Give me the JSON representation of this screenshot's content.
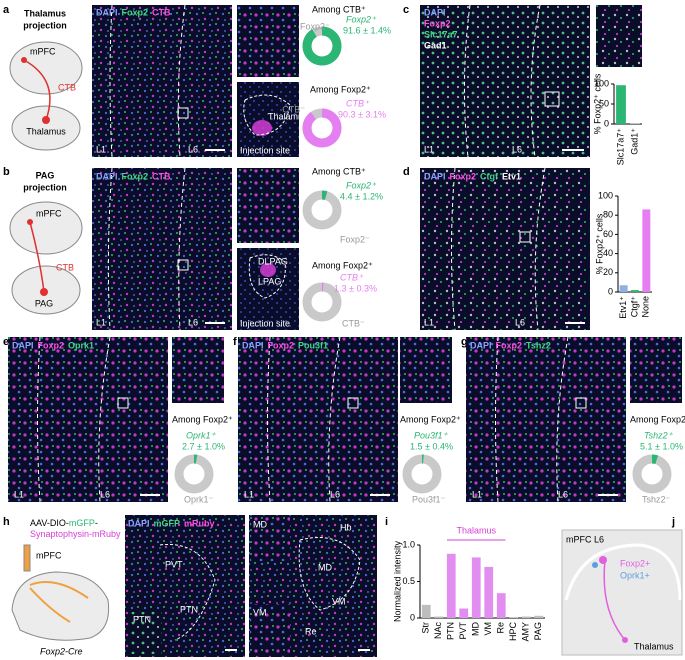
{
  "panels": {
    "a": {
      "letter": "a",
      "title_lines": [
        "Thalamus",
        "projection"
      ],
      "schematic": {
        "source": "mPFC",
        "tracer": "CTB",
        "target": "Thalamus"
      },
      "image": {
        "stains": [
          {
            "text": "DAPI",
            "color": "#8aa2ff"
          },
          {
            "text": "Foxp2",
            "color": "#3fd884"
          },
          {
            "text": "CTB",
            "color": "#ff4fe0"
          }
        ],
        "layers": [
          "L1",
          "L6"
        ]
      },
      "inset": {
        "region": "Thalamus",
        "caption": "Injection site"
      },
      "donuts": [
        {
          "title": "Among CTB⁺",
          "pos_label": "Foxp2⁺",
          "neg_label": "Foxp2⁻",
          "value": 91.6,
          "value_label": "91.6 ± 1.4%",
          "color": "#2bb673"
        },
        {
          "title": "Among Foxp2⁺",
          "pos_label": "CTB⁺",
          "neg_label": "CTB⁻",
          "value": 90.3,
          "value_label": "90.3 ± 3.1%",
          "color": "#e57ef0"
        }
      ]
    },
    "b": {
      "letter": "b",
      "title_lines": [
        "PAG",
        "projection"
      ],
      "schematic": {
        "source": "mPFC",
        "tracer": "CTB",
        "target": "PAG"
      },
      "image": {
        "stains": [
          {
            "text": "DAPI",
            "color": "#8aa2ff"
          },
          {
            "text": "Foxp2",
            "color": "#3fd884"
          },
          {
            "text": "CTB",
            "color": "#ff4fe0"
          }
        ],
        "layers": [
          "L1",
          "L6"
        ]
      },
      "inset": {
        "regions": [
          "DLPAG",
          "LPAG"
        ],
        "caption": "Injection site"
      },
      "donuts": [
        {
          "title": "Among CTB⁺",
          "pos_label": "Foxp2⁺",
          "neg_label": "Foxp2⁻",
          "value": 4.4,
          "value_label": "4.4 ± 1.2%",
          "color": "#2bb673"
        },
        {
          "title": "Among Foxp2⁺",
          "pos_label": "CTB⁺",
          "neg_label": "CTB⁻",
          "value": 1.3,
          "value_label": "1.3 ± 0.3%",
          "color": "#e57ef0"
        }
      ]
    },
    "c": {
      "letter": "c",
      "image": {
        "stains": [
          {
            "text": "DAPI",
            "color": "#8aa2ff"
          },
          {
            "text": "Foxp2",
            "color": "#ff4fe0"
          },
          {
            "text": "Slc17a7",
            "color": "#3fd884"
          },
          {
            "text": "Gad1",
            "color": "#ffffff"
          }
        ],
        "layers": [
          "L1",
          "L6"
        ]
      },
      "chart": {
        "type": "bar",
        "y_label": "% Foxp2⁺ cells",
        "categories": [
          "Slc17a7⁺",
          "Gad1⁺"
        ],
        "values": [
          97,
          1
        ],
        "colors": [
          "#2bb673",
          "#b0b0b0"
        ],
        "ylim": [
          0,
          100
        ],
        "yticks": [
          0,
          50,
          100
        ]
      }
    },
    "d": {
      "letter": "d",
      "image": {
        "stains": [
          {
            "text": "DAPI",
            "color": "#8aa2ff"
          },
          {
            "text": "Foxp2",
            "color": "#ff4fe0"
          },
          {
            "text": "Ctgf",
            "color": "#3fd884"
          },
          {
            "text": "Etv1",
            "color": "#ffffff"
          }
        ],
        "layers": [
          "L1",
          "L6"
        ]
      },
      "chart": {
        "type": "bar",
        "y_label": "% Foxp2⁺ cells",
        "categories": [
          "Etv1⁺",
          "Ctgf⁺",
          "None"
        ],
        "values": [
          7,
          2,
          86
        ],
        "colors": [
          "#8fb0e0",
          "#2bb673",
          "#e57ef0"
        ],
        "ylim": [
          0,
          100
        ],
        "yticks": [
          0,
          20,
          40,
          60,
          80,
          100
        ]
      }
    },
    "e": {
      "letter": "e",
      "image": {
        "stains": [
          {
            "text": "DAPI",
            "color": "#8aa2ff"
          },
          {
            "text": "Foxp2",
            "color": "#ff4fe0"
          },
          {
            "text": "Oprk1",
            "color": "#3fd884"
          }
        ],
        "layers": [
          "L1",
          "L6"
        ]
      },
      "donut": {
        "title": "Among Foxp2⁺",
        "pos_label": "Oprk1⁺",
        "neg_label": "Oprk1⁻",
        "value": 2.7,
        "value_label": "2.7 ± 1.0%",
        "color": "#2bb673"
      }
    },
    "f": {
      "letter": "f",
      "image": {
        "stains": [
          {
            "text": "DAPI",
            "color": "#8aa2ff"
          },
          {
            "text": "Foxp2",
            "color": "#ff4fe0"
          },
          {
            "text": "Pou3f1",
            "color": "#3fd884"
          }
        ],
        "layers": [
          "L1",
          "L6"
        ]
      },
      "donut": {
        "title": "Among Foxp2⁺",
        "pos_label": "Pou3f1⁺",
        "neg_label": "Pou3f1⁻",
        "value": 1.5,
        "value_label": "1.5 ± 0.4%",
        "color": "#2bb673"
      }
    },
    "g": {
      "letter": "g",
      "image": {
        "stains": [
          {
            "text": "DAPI",
            "color": "#8aa2ff"
          },
          {
            "text": "Foxp2",
            "color": "#ff4fe0"
          },
          {
            "text": "Tshz2",
            "color": "#3fd884"
          }
        ],
        "layers": [
          "L1",
          "L6"
        ]
      },
      "donut": {
        "title": "Among Foxp2⁺",
        "pos_label": "Tshz2⁺",
        "neg_label": "Tshz2⁻",
        "value": 5.1,
        "value_label": "5.1 ± 1.0%",
        "color": "#2bb673"
      }
    },
    "h": {
      "letter": "h",
      "construct": [
        [
          {
            "text": "AAV-DIO-",
            "color": "#000000"
          },
          {
            "text": "mGFP",
            "color": "#2bb673"
          },
          {
            "text": "-",
            "color": "#000000"
          }
        ],
        [
          {
            "text": "Synaptophysin-mRuby",
            "color": "#d63fd6"
          }
        ]
      ],
      "source": "mPFC",
      "mouse_line": "Foxp2-Cre",
      "image_left": {
        "stains": [
          {
            "text": "DAPI",
            "color": "#8aa2ff"
          },
          {
            "text": "mGFP",
            "color": "#3fd884"
          },
          {
            "text": "mRuby",
            "color": "#ff4fe0"
          }
        ],
        "regions": [
          "PVT",
          "PTN"
        ],
        "inset": "PTN"
      },
      "image_right": {
        "regions": [
          "Hb",
          "MD",
          "VM",
          "Re"
        ],
        "insets": [
          "MD",
          "VM"
        ]
      }
    },
    "i": {
      "letter": "i",
      "chart": {
        "type": "bar",
        "y_label": "Normalized intensity",
        "group_label": "Thalamus",
        "categories": [
          "Str",
          "NAc",
          "PTN",
          "PVT",
          "MD",
          "VM",
          "Re",
          "HPC",
          "AMY",
          "PAG"
        ],
        "values": [
          0.18,
          0.02,
          0.88,
          0.13,
          0.83,
          0.7,
          0.34,
          0.01,
          0.02,
          0.03
        ],
        "colors": [
          "#bdbdbd",
          "#bdbdbd",
          "#e28ef0",
          "#e28ef0",
          "#e28ef0",
          "#e28ef0",
          "#e28ef0",
          "#bdbdbd",
          "#bdbdbd",
          "#bdbdbd"
        ],
        "ylim": [
          0,
          1
        ],
        "yticks": [
          0,
          0.5,
          {
            "value": 1,
            "label": "1.0"
          }
        ]
      }
    },
    "j": {
      "letter": "j",
      "region": "mPFC L6",
      "cells": [
        {
          "text": "Foxp2+",
          "color": "#e060e0"
        },
        {
          "text": "Oprk1+",
          "color": "#5d9de0"
        }
      ],
      "target": "Thalamus"
    }
  }
}
